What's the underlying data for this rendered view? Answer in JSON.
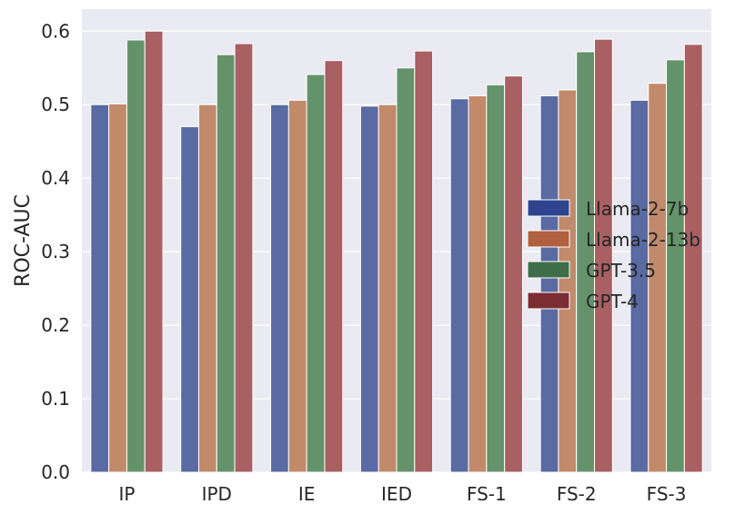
{
  "chart_data": {
    "type": "bar",
    "title": "",
    "xlabel": "",
    "ylabel": "ROC-AUC",
    "ylim": [
      0,
      0.63
    ],
    "yticks": [
      0.0,
      0.1,
      0.2,
      0.3,
      0.4,
      0.5,
      0.6
    ],
    "ytick_labels": [
      "0.0",
      "0.1",
      "0.2",
      "0.3",
      "0.4",
      "0.5",
      "0.6"
    ],
    "grid": true,
    "legend_position": "right",
    "categories": [
      "IP",
      "IPD",
      "IE",
      "IED",
      "FS-1",
      "FS-2",
      "FS-3"
    ],
    "series": [
      {
        "name": "Llama-2-7b",
        "color": "#5a6aa2",
        "legend_color": "#2f448f",
        "values": [
          0.5,
          0.47,
          0.5,
          0.498,
          0.508,
          0.512,
          0.506
        ]
      },
      {
        "name": "Llama-2-13b",
        "color": "#c18a6b",
        "legend_color": "#b1603f",
        "values": [
          0.501,
          0.5,
          0.506,
          0.5,
          0.512,
          0.52,
          0.529
        ]
      },
      {
        "name": "GPT-3.5",
        "color": "#64936b",
        "legend_color": "#3e6e48",
        "values": [
          0.588,
          0.568,
          0.541,
          0.55,
          0.527,
          0.572,
          0.561
        ]
      },
      {
        "name": "GPT-4",
        "color": "#a86063",
        "legend_color": "#7c2d33",
        "values": [
          0.6,
          0.583,
          0.56,
          0.573,
          0.539,
          0.589,
          0.582
        ]
      }
    ]
  }
}
